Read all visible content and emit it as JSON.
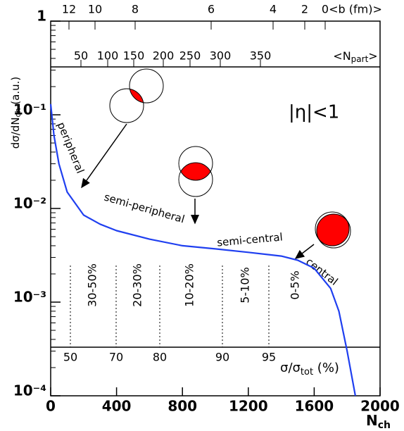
{
  "chart_data": {
    "type": "line",
    "x_label": {
      "main": "N",
      "sub": "ch"
    },
    "y_label": {
      "main": "dσ/dN",
      "sub": "ch",
      "unit": " (a.u.)"
    },
    "annotation": "|η|<1",
    "curve_labels": [
      "peripheral",
      "semi-peripheral",
      "semi-central",
      "central"
    ],
    "x": [
      0,
      20,
      50,
      100,
      200,
      300,
      400,
      600,
      800,
      1000,
      1200,
      1400,
      1500,
      1600,
      1700,
      1750,
      1800,
      1850
    ],
    "series": [
      {
        "name": "dσ/dNch",
        "color": "#1f3ff0",
        "values": [
          0.13,
          0.06,
          0.03,
          0.015,
          0.0085,
          0.0068,
          0.0058,
          0.0047,
          0.004,
          0.0037,
          0.0034,
          0.0031,
          0.0028,
          0.0023,
          0.0014,
          0.0008,
          0.0003,
          0.0001
        ]
      }
    ],
    "xlim": [
      0,
      2000
    ],
    "xticks": [
      0,
      400,
      800,
      1200,
      1600,
      2000
    ],
    "ylim": [
      0.0001,
      1
    ],
    "log_y": true,
    "yticks": [
      {
        "value": 1,
        "label": "1"
      },
      {
        "value": 0.1,
        "label": "10⁻¹"
      },
      {
        "value": 0.01,
        "label": "10⁻²"
      },
      {
        "value": 0.001,
        "label": "10⁻³"
      },
      {
        "value": 0.0001,
        "label": "10⁻⁴"
      }
    ],
    "b_axis": {
      "label": "<b (fm)>",
      "ticks": [
        12,
        10,
        8,
        6,
        4,
        2,
        0
      ]
    },
    "npart_axis": {
      "label": "<N",
      "sub": "part",
      "end": ">",
      "ticks": [
        50,
        100,
        150,
        200,
        250,
        300,
        350
      ]
    },
    "centrality_axis": {
      "label": "σ/σ",
      "sub": "tot",
      "unit": " (%)",
      "ticks": [
        50,
        70,
        80,
        90,
        95
      ],
      "classes": [
        "30-50%",
        "20-30%",
        "10-20%",
        "5-10%",
        "0-5%"
      ]
    }
  }
}
